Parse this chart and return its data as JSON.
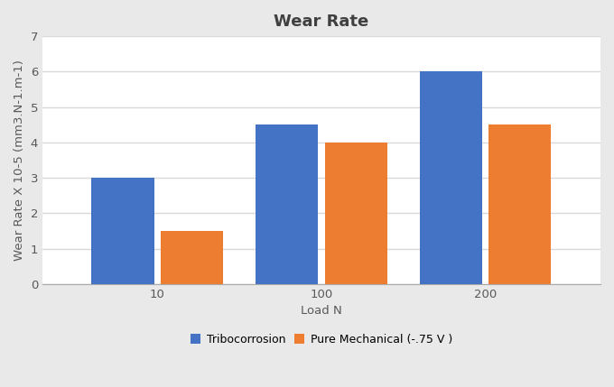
{
  "title": "Wear Rate",
  "xlabel": "Load N",
  "ylabel": "Wear Rate X 10-5 (mm3.N-1.m-1)",
  "categories": [
    "10",
    "100",
    "200"
  ],
  "series": [
    {
      "name": "Tribocorrosion",
      "values": [
        3.0,
        4.5,
        6.0
      ],
      "color": "#4472C4"
    },
    {
      "name": "Pure Mechanical (-.75 V )",
      "values": [
        1.5,
        4.0,
        4.5
      ],
      "color": "#ED7D31"
    }
  ],
  "ylim": [
    0,
    7
  ],
  "yticks": [
    0,
    1,
    2,
    3,
    4,
    5,
    6,
    7
  ],
  "figure_background_color": "#E9E9E9",
  "plot_background_color": "#FFFFFF",
  "title_fontsize": 13,
  "axis_label_fontsize": 9.5,
  "tick_fontsize": 9.5,
  "legend_fontsize": 9,
  "bar_width": 0.38,
  "bar_gap": 0.04,
  "grid_color": "#D9D9D9",
  "grid_linewidth": 1.0
}
